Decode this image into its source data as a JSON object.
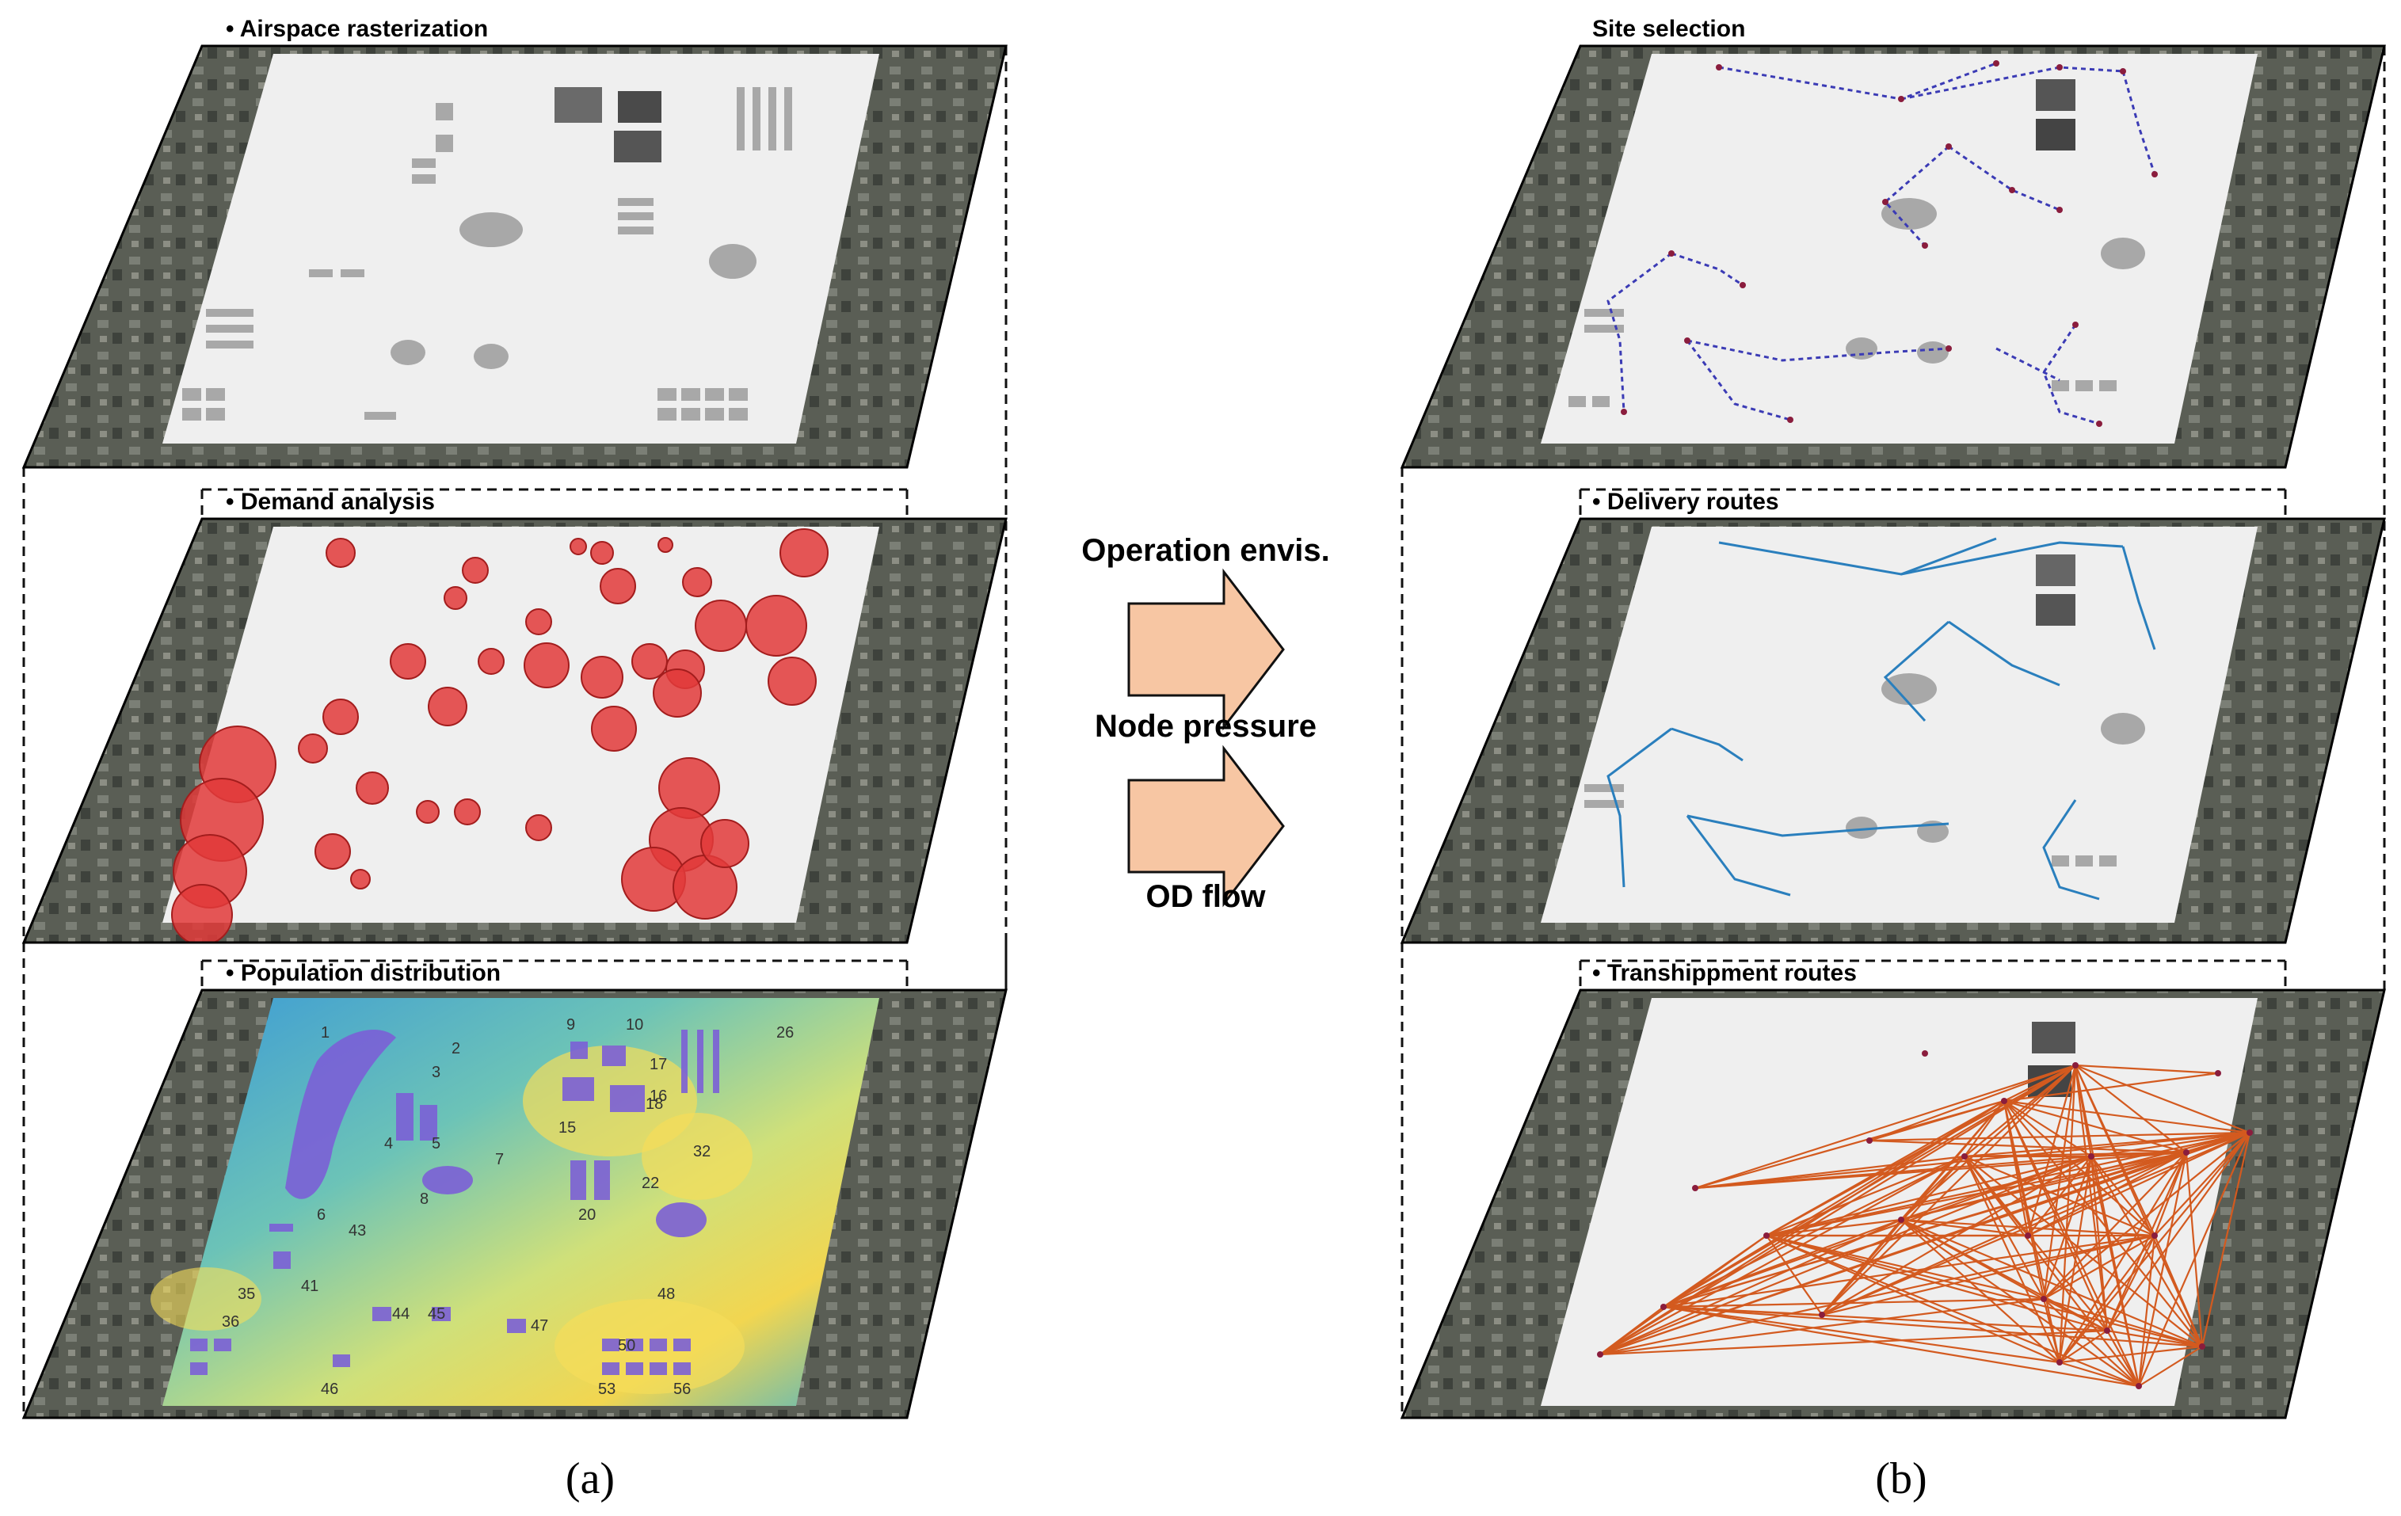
{
  "left_group": {
    "layers": [
      {
        "label": "• Airspace rasterization"
      },
      {
        "label": "• Demand analysis"
      },
      {
        "label": "• Population distribution"
      }
    ],
    "caption": "(a)"
  },
  "right_group": {
    "layers": [
      {
        "label": "Site selection"
      },
      {
        "label": "• Delivery routes"
      },
      {
        "label": "• Transhippment routes"
      }
    ],
    "caption": "(b)"
  },
  "flow": {
    "labels": [
      "Operation envis.",
      "Node pressure",
      "OD flow"
    ]
  },
  "population_numbers": [
    "1",
    "2",
    "3",
    "4",
    "5",
    "6",
    "7",
    "8",
    "9",
    "10",
    "15",
    "16",
    "17",
    "18",
    "20",
    "22",
    "26",
    "32",
    "35",
    "36",
    "41",
    "43",
    "44",
    "45",
    "46",
    "47",
    "48",
    "50",
    "53",
    "56"
  ],
  "colors": {
    "plane": "#efefef",
    "satellite": "#4a4f48",
    "building": "#9e9e9e",
    "demand_circle": "#e23a3a",
    "heat_low": "#3fa7d8",
    "heat_high": "#f0d44a",
    "building_purple": "#7b5fd6",
    "delivery_route": "#2a7fbd",
    "site_route": "#3b3bb5",
    "transship_route": "#d35a1f",
    "arrow": "#f7c6a3"
  }
}
